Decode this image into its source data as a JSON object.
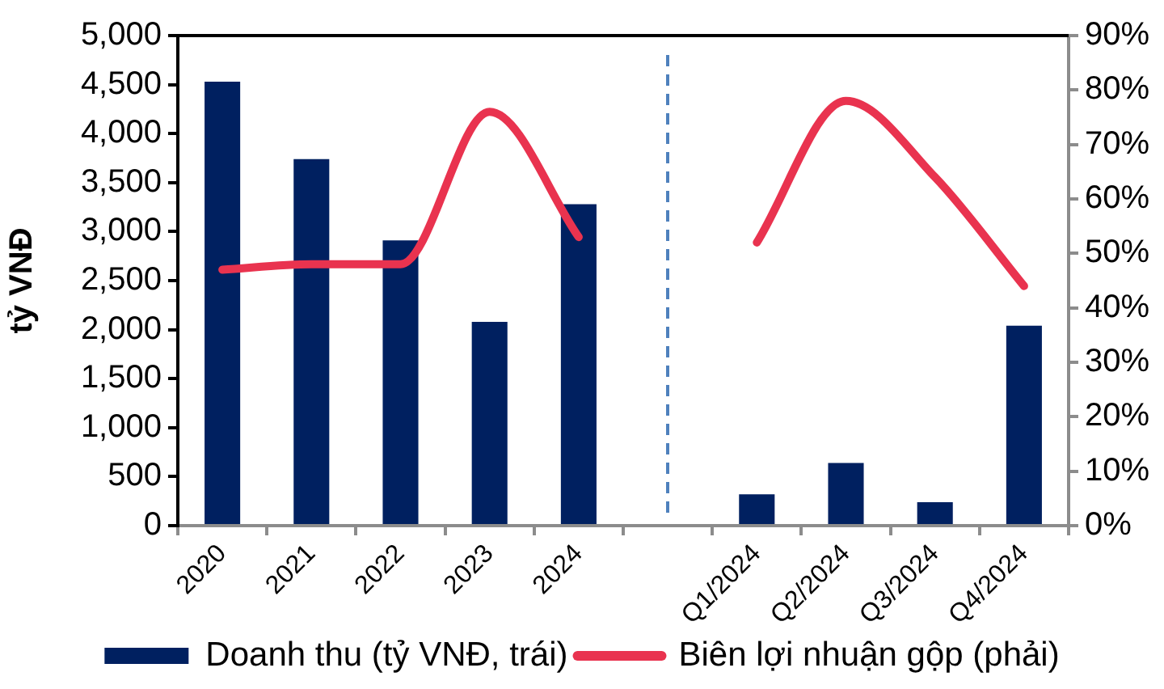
{
  "chart_data": {
    "type": "bar",
    "ylabel": "tỷ VNĐ",
    "categories": [
      "2020",
      "2021",
      "2022",
      "2023",
      "2024",
      null,
      "Q1/2024",
      "Q2/2024",
      "Q3/2024",
      "Q4/2024"
    ],
    "series": [
      {
        "name": "Doanh thu (tỷ VNĐ, trái)",
        "type": "bar",
        "color": "#002060",
        "values": [
          4530,
          3740,
          2910,
          2080,
          3280,
          null,
          320,
          640,
          240,
          2040
        ]
      },
      {
        "name": "Biên lợi nhuận gộp (phải)",
        "type": "line",
        "axis": "y2",
        "color": "#e9334f",
        "values": [
          47,
          48,
          48,
          76,
          53,
          null,
          52,
          78,
          64,
          44
        ]
      }
    ],
    "ylim": [
      0,
      5000
    ],
    "yticks": [
      0,
      500,
      {
        "value": 1000,
        "label": "1,000"
      },
      {
        "value": 1500,
        "label": "1,500"
      },
      {
        "value": 2000,
        "label": "2,000"
      },
      {
        "value": 2500,
        "label": "2,500"
      },
      {
        "value": 3000,
        "label": "3,000"
      },
      {
        "value": 3500,
        "label": "3,500"
      },
      {
        "value": 4000,
        "label": "4,000"
      },
      {
        "value": 4500,
        "label": "4,500"
      },
      {
        "value": 5000,
        "label": "5,000"
      }
    ],
    "y2lim": [
      0,
      90
    ],
    "y2ticks": [
      {
        "value": 0,
        "label": "0%"
      },
      {
        "value": 10,
        "label": "10%"
      },
      {
        "value": 20,
        "label": "20%"
      },
      {
        "value": 30,
        "label": "30%"
      },
      {
        "value": 40,
        "label": "40%"
      },
      {
        "value": 50,
        "label": "50%"
      },
      {
        "value": 60,
        "label": "60%"
      },
      {
        "value": 70,
        "label": "70%"
      },
      {
        "value": 80,
        "label": "80%"
      },
      {
        "value": 90,
        "label": "90%"
      }
    ],
    "legend": "bottom",
    "marker": "none",
    "line_style": "solid"
  }
}
